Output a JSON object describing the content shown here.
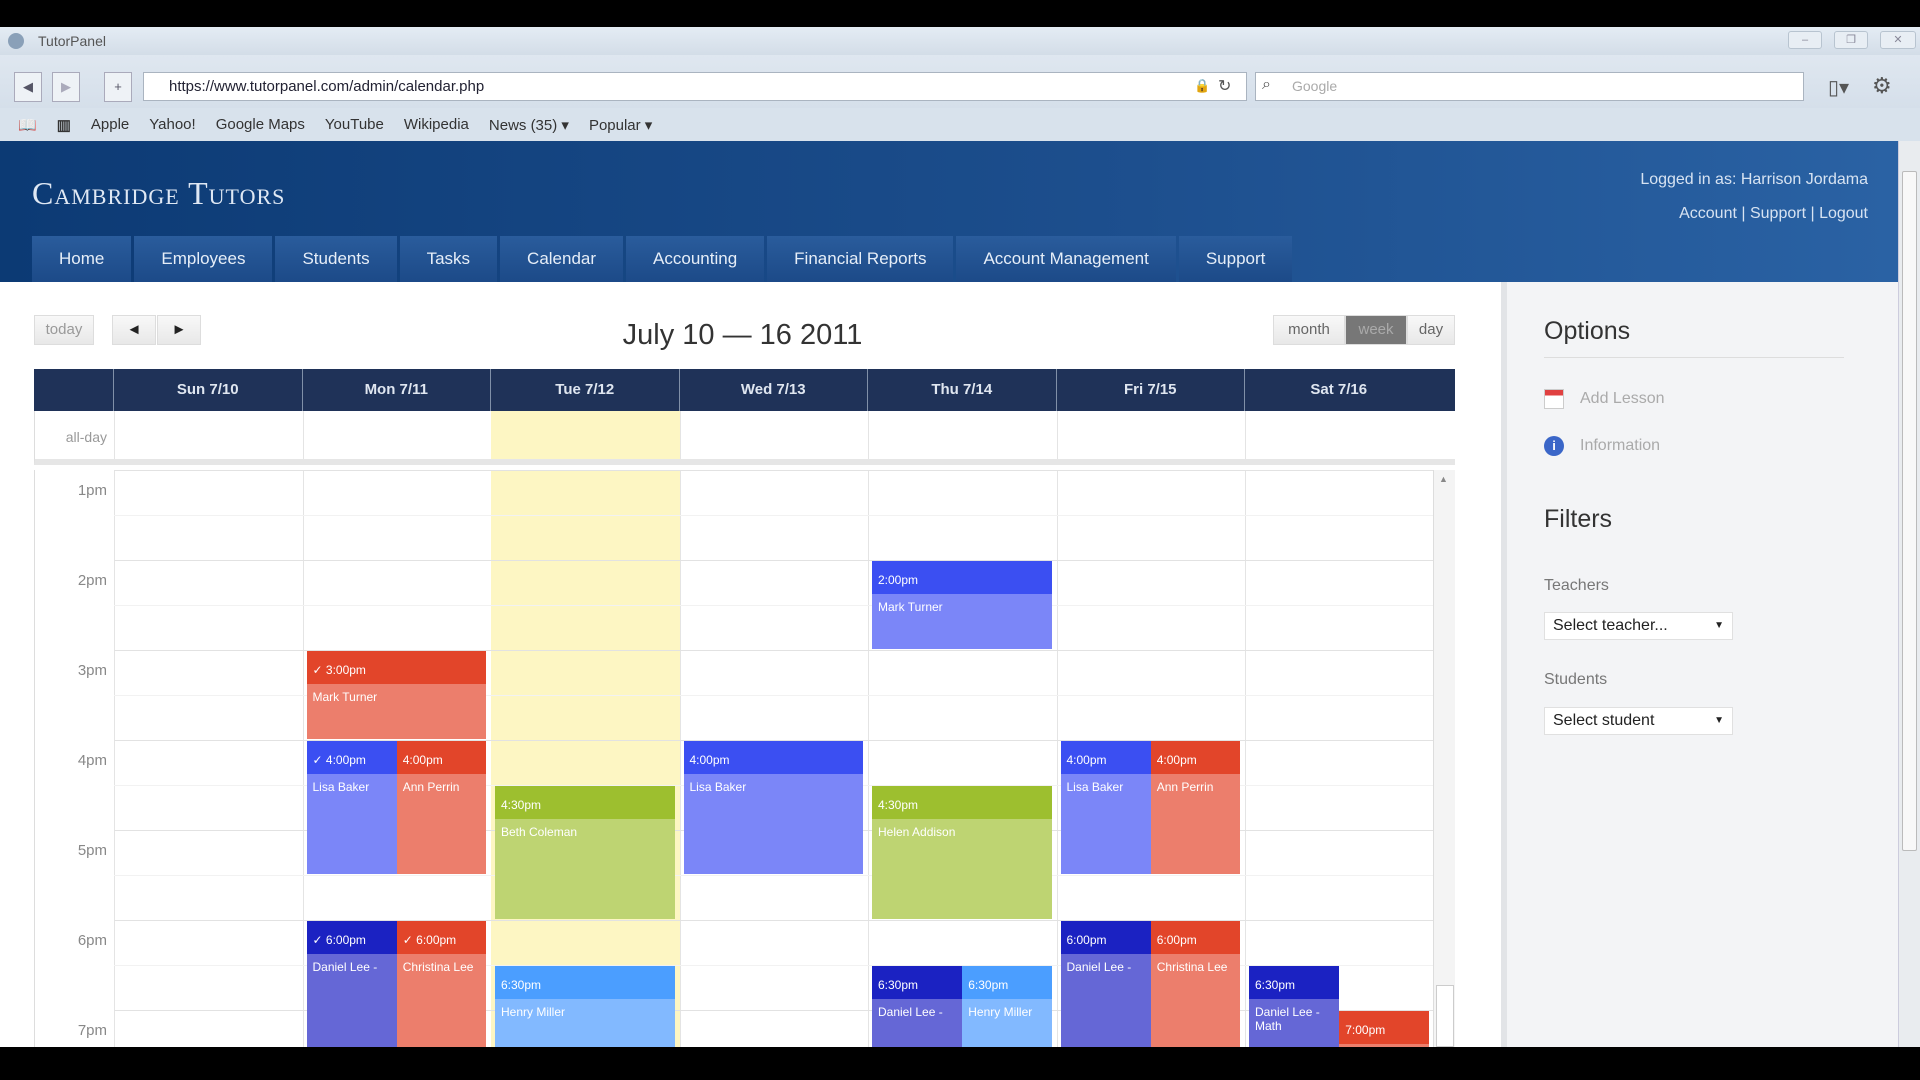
{
  "browser": {
    "title": "TutorPanel",
    "url": "https://www.tutorpanel.com/admin/calendar.php",
    "search_placeholder": "Google",
    "bookmarks": [
      "Apple",
      "Yahoo!",
      "Google Maps",
      "YouTube",
      "Wikipedia",
      "News (35) ▾",
      "Popular ▾"
    ]
  },
  "site": {
    "brand": "Cambridge Tutors",
    "logged_in": "Logged in as: Harrison Jordama",
    "account": "Account",
    "support": "Support",
    "logout": "Logout",
    "tabs": [
      "Home",
      "Employees",
      "Students",
      "Tasks",
      "Calendar",
      "Accounting",
      "Financial Reports",
      "Account Management",
      "Support"
    ]
  },
  "calendar": {
    "today": "today",
    "prev": "◄",
    "next": "►",
    "title": "July 10 — 16 2011",
    "views": [
      "month",
      "week",
      "day"
    ],
    "active_view": "week",
    "days": [
      "Sun 7/10",
      "Mon 7/11",
      "Tue 7/12",
      "Wed 7/13",
      "Thu 7/14",
      "Fri 7/15",
      "Sat 7/16"
    ],
    "today_index": 2,
    "allday_label": "all-day",
    "hours": [
      "1pm",
      "2pm",
      "3pm",
      "4pm",
      "5pm",
      "6pm",
      "7pm"
    ],
    "first_hour": 13,
    "colors": {
      "blue": [
        "#3b4ff2",
        "#7b86f8"
      ],
      "red": [
        "#e2452a",
        "#ec7e6c"
      ],
      "green": [
        "#9dbf2f",
        "#bed472"
      ],
      "navy": [
        "#1b22c2",
        "#6567d6"
      ],
      "sky": [
        "#4b9eff",
        "#82b9ff"
      ]
    },
    "events": [
      {
        "day": 4,
        "start": 14,
        "end": 15,
        "time": "2:00pm",
        "title": "Mark Turner",
        "color": "blue",
        "lane": 0,
        "lanes": 1
      },
      {
        "day": 1,
        "start": 15,
        "end": 16,
        "time": "✓ 3:00pm",
        "title": "Mark Turner",
        "color": "red",
        "lane": 0,
        "lanes": 1
      },
      {
        "day": 1,
        "start": 16,
        "end": 17.5,
        "time": "✓ 4:00pm",
        "title": "Lisa Baker",
        "color": "blue",
        "lane": 0,
        "lanes": 2
      },
      {
        "day": 1,
        "start": 16,
        "end": 17.5,
        "time": "4:00pm",
        "title": "Ann Perrin",
        "color": "red",
        "lane": 1,
        "lanes": 2
      },
      {
        "day": 1,
        "start": 18,
        "end": 19.5,
        "time": "✓ 6:00pm",
        "title": "Daniel Lee -",
        "color": "navy",
        "lane": 0,
        "lanes": 2
      },
      {
        "day": 1,
        "start": 18,
        "end": 19.5,
        "time": "✓ 6:00pm",
        "title": "Christina Lee",
        "color": "red",
        "lane": 1,
        "lanes": 2
      },
      {
        "day": 2,
        "start": 16.5,
        "end": 18,
        "time": "4:30pm",
        "title": "Beth Coleman",
        "color": "green",
        "lane": 0,
        "lanes": 1
      },
      {
        "day": 2,
        "start": 18.5,
        "end": 20,
        "time": "6:30pm",
        "title": "Henry Miller",
        "color": "sky",
        "lane": 0,
        "lanes": 1
      },
      {
        "day": 3,
        "start": 16,
        "end": 17.5,
        "time": "4:00pm",
        "title": "Lisa Baker",
        "color": "blue",
        "lane": 0,
        "lanes": 1
      },
      {
        "day": 4,
        "start": 16.5,
        "end": 18,
        "time": "4:30pm",
        "title": "Helen Addison",
        "color": "green",
        "lane": 0,
        "lanes": 1
      },
      {
        "day": 4,
        "start": 18.5,
        "end": 20,
        "time": "6:30pm",
        "title": "Daniel Lee -",
        "color": "navy",
        "lane": 0,
        "lanes": 2
      },
      {
        "day": 4,
        "start": 18.5,
        "end": 20,
        "time": "6:30pm",
        "title": "Henry Miller",
        "color": "sky",
        "lane": 1,
        "lanes": 2
      },
      {
        "day": 5,
        "start": 16,
        "end": 17.5,
        "time": "4:00pm",
        "title": "Lisa Baker",
        "color": "blue",
        "lane": 0,
        "lanes": 2
      },
      {
        "day": 5,
        "start": 16,
        "end": 17.5,
        "time": "4:00pm",
        "title": "Ann Perrin",
        "color": "red",
        "lane": 1,
        "lanes": 2
      },
      {
        "day": 5,
        "start": 18,
        "end": 19.5,
        "time": "6:00pm",
        "title": "Daniel Lee -",
        "color": "navy",
        "lane": 0,
        "lanes": 2
      },
      {
        "day": 5,
        "start": 18,
        "end": 19.5,
        "time": "6:00pm",
        "title": "Christina Lee",
        "color": "red",
        "lane": 1,
        "lanes": 2
      },
      {
        "day": 6,
        "start": 18.5,
        "end": 20,
        "time": "6:30pm",
        "title": "Daniel Lee - Math",
        "color": "navy",
        "lane": 0,
        "lanes": 2
      },
      {
        "day": 6,
        "start": 19,
        "end": 20,
        "time": "7:00pm",
        "title": "",
        "color": "red",
        "lane": 1,
        "lanes": 2
      }
    ]
  },
  "sidebar": {
    "options_title": "Options",
    "add_lesson": "Add Lesson",
    "information": "Information",
    "filters_title": "Filters",
    "teachers_label": "Teachers",
    "teachers_value": "Select teacher...",
    "students_label": "Students",
    "students_value": "Select student"
  }
}
